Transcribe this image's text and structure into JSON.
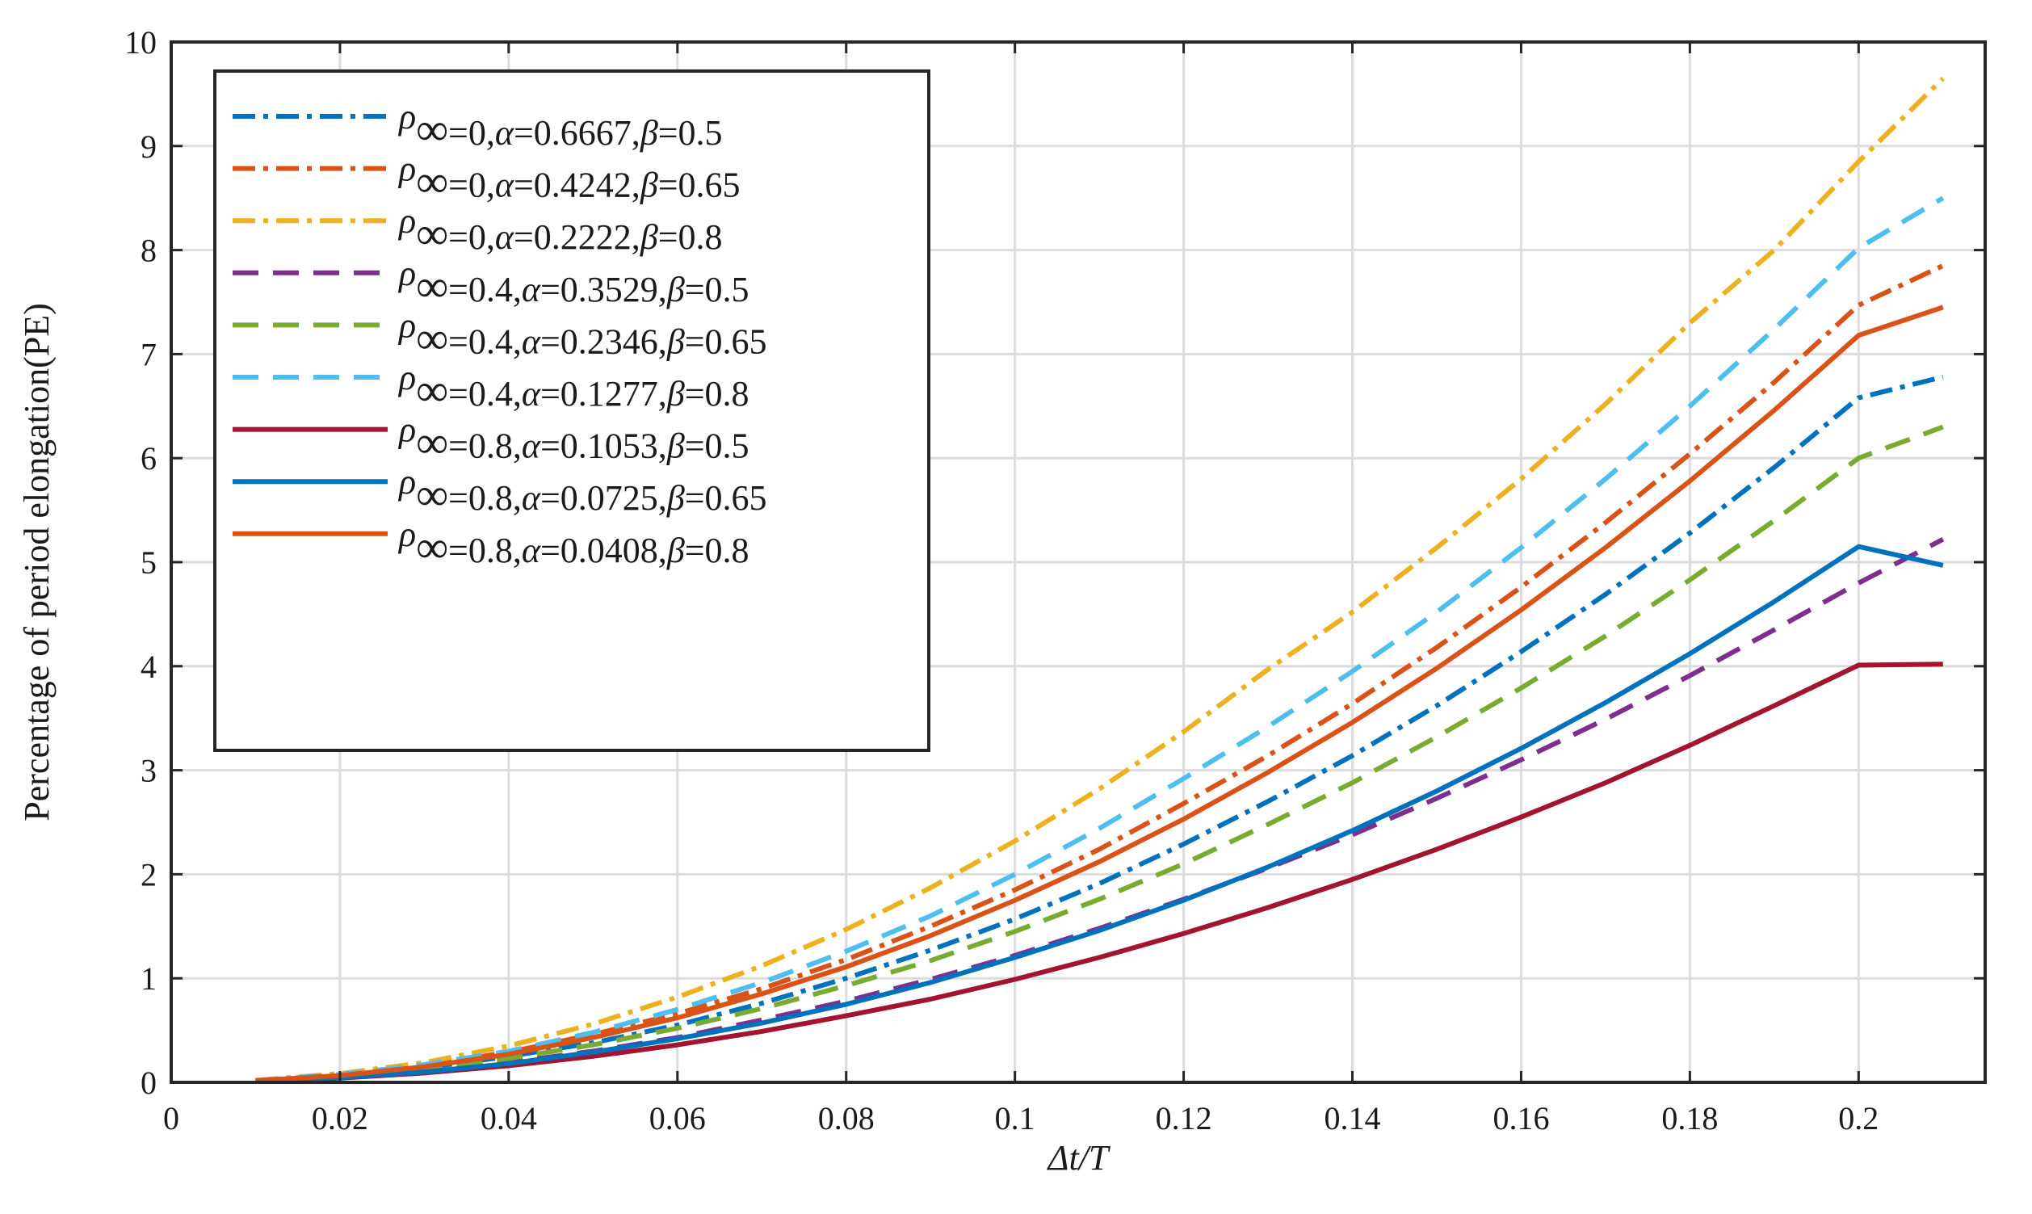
{
  "chart_data": {
    "type": "line",
    "title": "",
    "xlabel": "Δt/T",
    "ylabel": "Percentage of period elongation(PE)",
    "xlim": [
      0,
      0.215
    ],
    "ylim": [
      0,
      10
    ],
    "xticks": [
      0,
      0.02,
      0.04,
      0.06,
      0.08,
      0.1,
      0.12,
      0.14,
      0.16,
      0.18,
      0.2
    ],
    "xtick_labels": [
      "0",
      "0.02",
      "0.04",
      "0.06",
      "0.08",
      "0.1",
      "0.12",
      "0.14",
      "0.16",
      "0.18",
      "0.2"
    ],
    "yticks": [
      0,
      1,
      2,
      3,
      4,
      5,
      6,
      7,
      8,
      9,
      10
    ],
    "ytick_labels": [
      "0",
      "1",
      "2",
      "3",
      "4",
      "5",
      "6",
      "7",
      "8",
      "9",
      "10"
    ],
    "grid": true,
    "legend_position": "top-left",
    "x": [
      0.01,
      0.02,
      0.03,
      0.04,
      0.05,
      0.06,
      0.07,
      0.08,
      0.09,
      0.1,
      0.11,
      0.12,
      0.13,
      0.14,
      0.15,
      0.16,
      0.17,
      0.18,
      0.19,
      0.2,
      0.21
    ],
    "series": [
      {
        "rho": "0",
        "alpha": "0.6667",
        "beta": "0.5",
        "color": "#0072BD",
        "style": "dashdot",
        "values": [
          0.014,
          0.06,
          0.14,
          0.25,
          0.38,
          0.55,
          0.76,
          1.0,
          1.27,
          1.57,
          1.91,
          2.29,
          2.7,
          3.14,
          3.62,
          4.14,
          4.69,
          5.28,
          5.91,
          6.58,
          6.78
        ]
      },
      {
        "rho": "0",
        "alpha": "0.4242",
        "beta": "0.65",
        "color": "#D95319",
        "style": "dashdot",
        "values": [
          0.017,
          0.07,
          0.16,
          0.29,
          0.46,
          0.66,
          0.9,
          1.18,
          1.5,
          1.85,
          2.24,
          2.68,
          3.14,
          3.64,
          4.18,
          4.76,
          5.38,
          6.04,
          6.73,
          7.47,
          7.85
        ]
      },
      {
        "rho": "0",
        "alpha": "0.2222",
        "beta": "0.8",
        "color": "#EDB120",
        "style": "dashdot",
        "values": [
          0.02,
          0.085,
          0.19,
          0.35,
          0.56,
          0.82,
          1.12,
          1.47,
          1.87,
          2.32,
          2.82,
          3.37,
          3.97,
          4.52,
          5.14,
          5.8,
          6.52,
          7.3,
          8.0,
          8.85,
          9.65
        ]
      },
      {
        "rho": "0.4",
        "alpha": "0.3529",
        "beta": "0.5",
        "color": "#7E2F8E",
        "style": "dashed",
        "values": [
          0.012,
          0.05,
          0.11,
          0.19,
          0.3,
          0.43,
          0.6,
          0.78,
          0.99,
          1.22,
          1.48,
          1.76,
          2.06,
          2.38,
          2.73,
          3.1,
          3.49,
          3.91,
          4.35,
          4.8,
          5.22
        ]
      },
      {
        "rho": "0.4",
        "alpha": "0.2346",
        "beta": "0.65",
        "color": "#77AC30",
        "style": "dashed",
        "values": [
          0.014,
          0.06,
          0.13,
          0.23,
          0.36,
          0.52,
          0.71,
          0.93,
          1.17,
          1.45,
          1.76,
          2.1,
          2.48,
          2.88,
          3.32,
          3.79,
          4.29,
          4.83,
          5.4,
          6.0,
          6.3
        ]
      },
      {
        "rho": "0.4",
        "alpha": "0.1277",
        "beta": "0.8",
        "color": "#4DBEEE",
        "style": "dashed",
        "values": [
          0.018,
          0.075,
          0.17,
          0.3,
          0.48,
          0.7,
          0.96,
          1.26,
          1.6,
          2.0,
          2.44,
          2.92,
          3.42,
          3.95,
          4.52,
          5.14,
          5.8,
          6.5,
          7.24,
          8.02,
          8.5
        ]
      },
      {
        "rho": "0.8",
        "alpha": "0.1053",
        "beta": "0.5",
        "color": "#A2142F",
        "style": "solid",
        "values": [
          0.009,
          0.04,
          0.09,
          0.16,
          0.25,
          0.36,
          0.49,
          0.64,
          0.8,
          0.99,
          1.2,
          1.43,
          1.68,
          1.95,
          2.24,
          2.55,
          2.88,
          3.24,
          3.62,
          4.01,
          4.02
        ]
      },
      {
        "rho": "0.8",
        "alpha": "0.0725",
        "beta": "0.65",
        "color": "#0072BD",
        "style": "solid",
        "values": [
          0.011,
          0.045,
          0.1,
          0.18,
          0.29,
          0.42,
          0.57,
          0.75,
          0.96,
          1.2,
          1.46,
          1.75,
          2.07,
          2.42,
          2.8,
          3.21,
          3.65,
          4.12,
          4.62,
          5.15,
          4.97
        ]
      },
      {
        "rho": "0.8",
        "alpha": "0.0408",
        "beta": "0.8",
        "color": "#D95319",
        "style": "solid",
        "values": [
          0.016,
          0.065,
          0.15,
          0.27,
          0.43,
          0.62,
          0.85,
          1.11,
          1.41,
          1.75,
          2.12,
          2.53,
          2.98,
          3.46,
          3.98,
          4.54,
          5.14,
          5.78,
          6.46,
          7.18,
          7.45
        ]
      }
    ]
  }
}
